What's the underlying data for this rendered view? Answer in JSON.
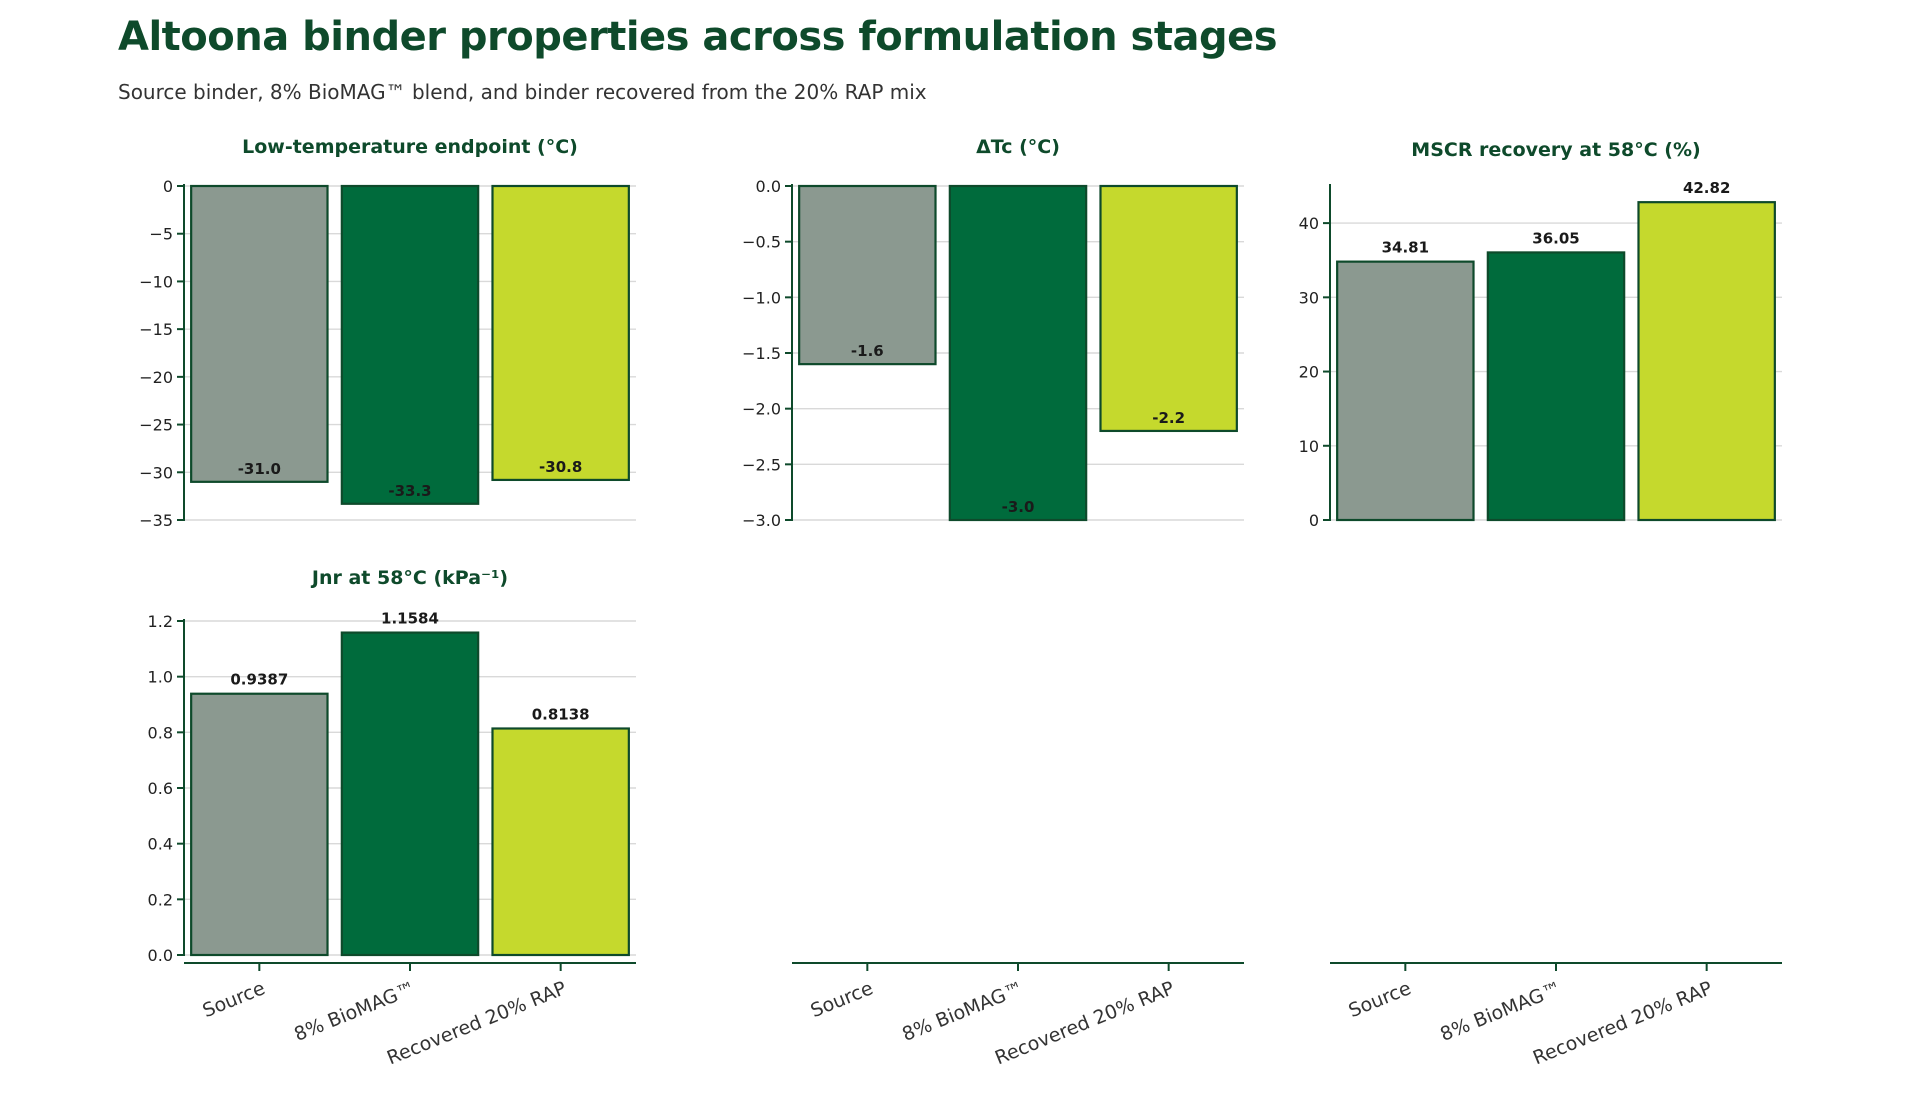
{
  "header": {
    "title": "Altoona binder properties across formulation stages",
    "subtitle": "Source binder, 8% BioMAG™ blend, and binder recovered from the 20% RAP mix"
  },
  "colors": {
    "title": "#0e4a2b",
    "bar_outline": "#0e4a2b",
    "grid": "#d9d9d9",
    "series": [
      "#8b9990",
      "#006b3c",
      "#c5d92d"
    ]
  },
  "chart_data": [
    {
      "type": "bar",
      "title": "Low-temperature endpoint (°C)",
      "categories": [
        "Source",
        "8% BioMAG™",
        "Recovered 20% RAP"
      ],
      "values": [
        -31.0,
        -33.3,
        -30.8
      ],
      "value_labels": [
        "-31.0",
        "-33.3",
        "-30.8"
      ],
      "ylim": [
        -35,
        0
      ],
      "yticks": [
        0,
        -5,
        -10,
        -15,
        -20,
        -25,
        -30,
        -35
      ],
      "ytick_labels": [
        "0",
        "−5",
        "−10",
        "−15",
        "−20",
        "−25",
        "−30",
        "−35"
      ],
      "grid": true,
      "show_category_labels": false
    },
    {
      "type": "bar",
      "title": "ΔTc (°C)",
      "categories": [
        "Source",
        "8% BioMAG™",
        "Recovered 20% RAP"
      ],
      "values": [
        -1.6,
        -3.0,
        -2.2
      ],
      "value_labels": [
        "-1.6",
        "-3.0",
        "-2.2"
      ],
      "ylim": [
        -3.0,
        0.0
      ],
      "yticks": [
        0.0,
        -0.5,
        -1.0,
        -1.5,
        -2.0,
        -2.5,
        -3.0
      ],
      "ytick_labels": [
        "0.0",
        "−0.5",
        "−1.0",
        "−1.5",
        "−2.0",
        "−2.5",
        "−3.0"
      ],
      "grid": true,
      "show_category_labels": true
    },
    {
      "type": "bar",
      "title": "MSCR recovery at 58°C (%)",
      "categories": [
        "Source",
        "8% BioMAG™",
        "Recovered 20% RAP"
      ],
      "values": [
        34.81,
        36.05,
        42.82
      ],
      "value_labels": [
        "34.81",
        "36.05",
        "42.82"
      ],
      "ylim": [
        0,
        45
      ],
      "yticks": [
        0,
        10,
        20,
        30,
        40
      ],
      "ytick_labels": [
        "0",
        "10",
        "20",
        "30",
        "40"
      ],
      "grid": true,
      "show_category_labels": true
    },
    {
      "type": "bar",
      "title": "Jnr at 58°C (kPa⁻¹)",
      "categories": [
        "Source",
        "8% BioMAG™",
        "Recovered 20% RAP"
      ],
      "values": [
        0.9387,
        1.1584,
        0.8138
      ],
      "value_labels": [
        "0.9387",
        "1.1584",
        "0.8138"
      ],
      "ylim": [
        0,
        1.2
      ],
      "yticks": [
        0.0,
        0.2,
        0.4,
        0.6,
        0.8,
        1.0,
        1.2
      ],
      "ytick_labels": [
        "0.0",
        "0.2",
        "0.4",
        "0.6",
        "0.8",
        "1.0",
        "1.2"
      ],
      "grid": true,
      "show_category_labels": true
    }
  ]
}
